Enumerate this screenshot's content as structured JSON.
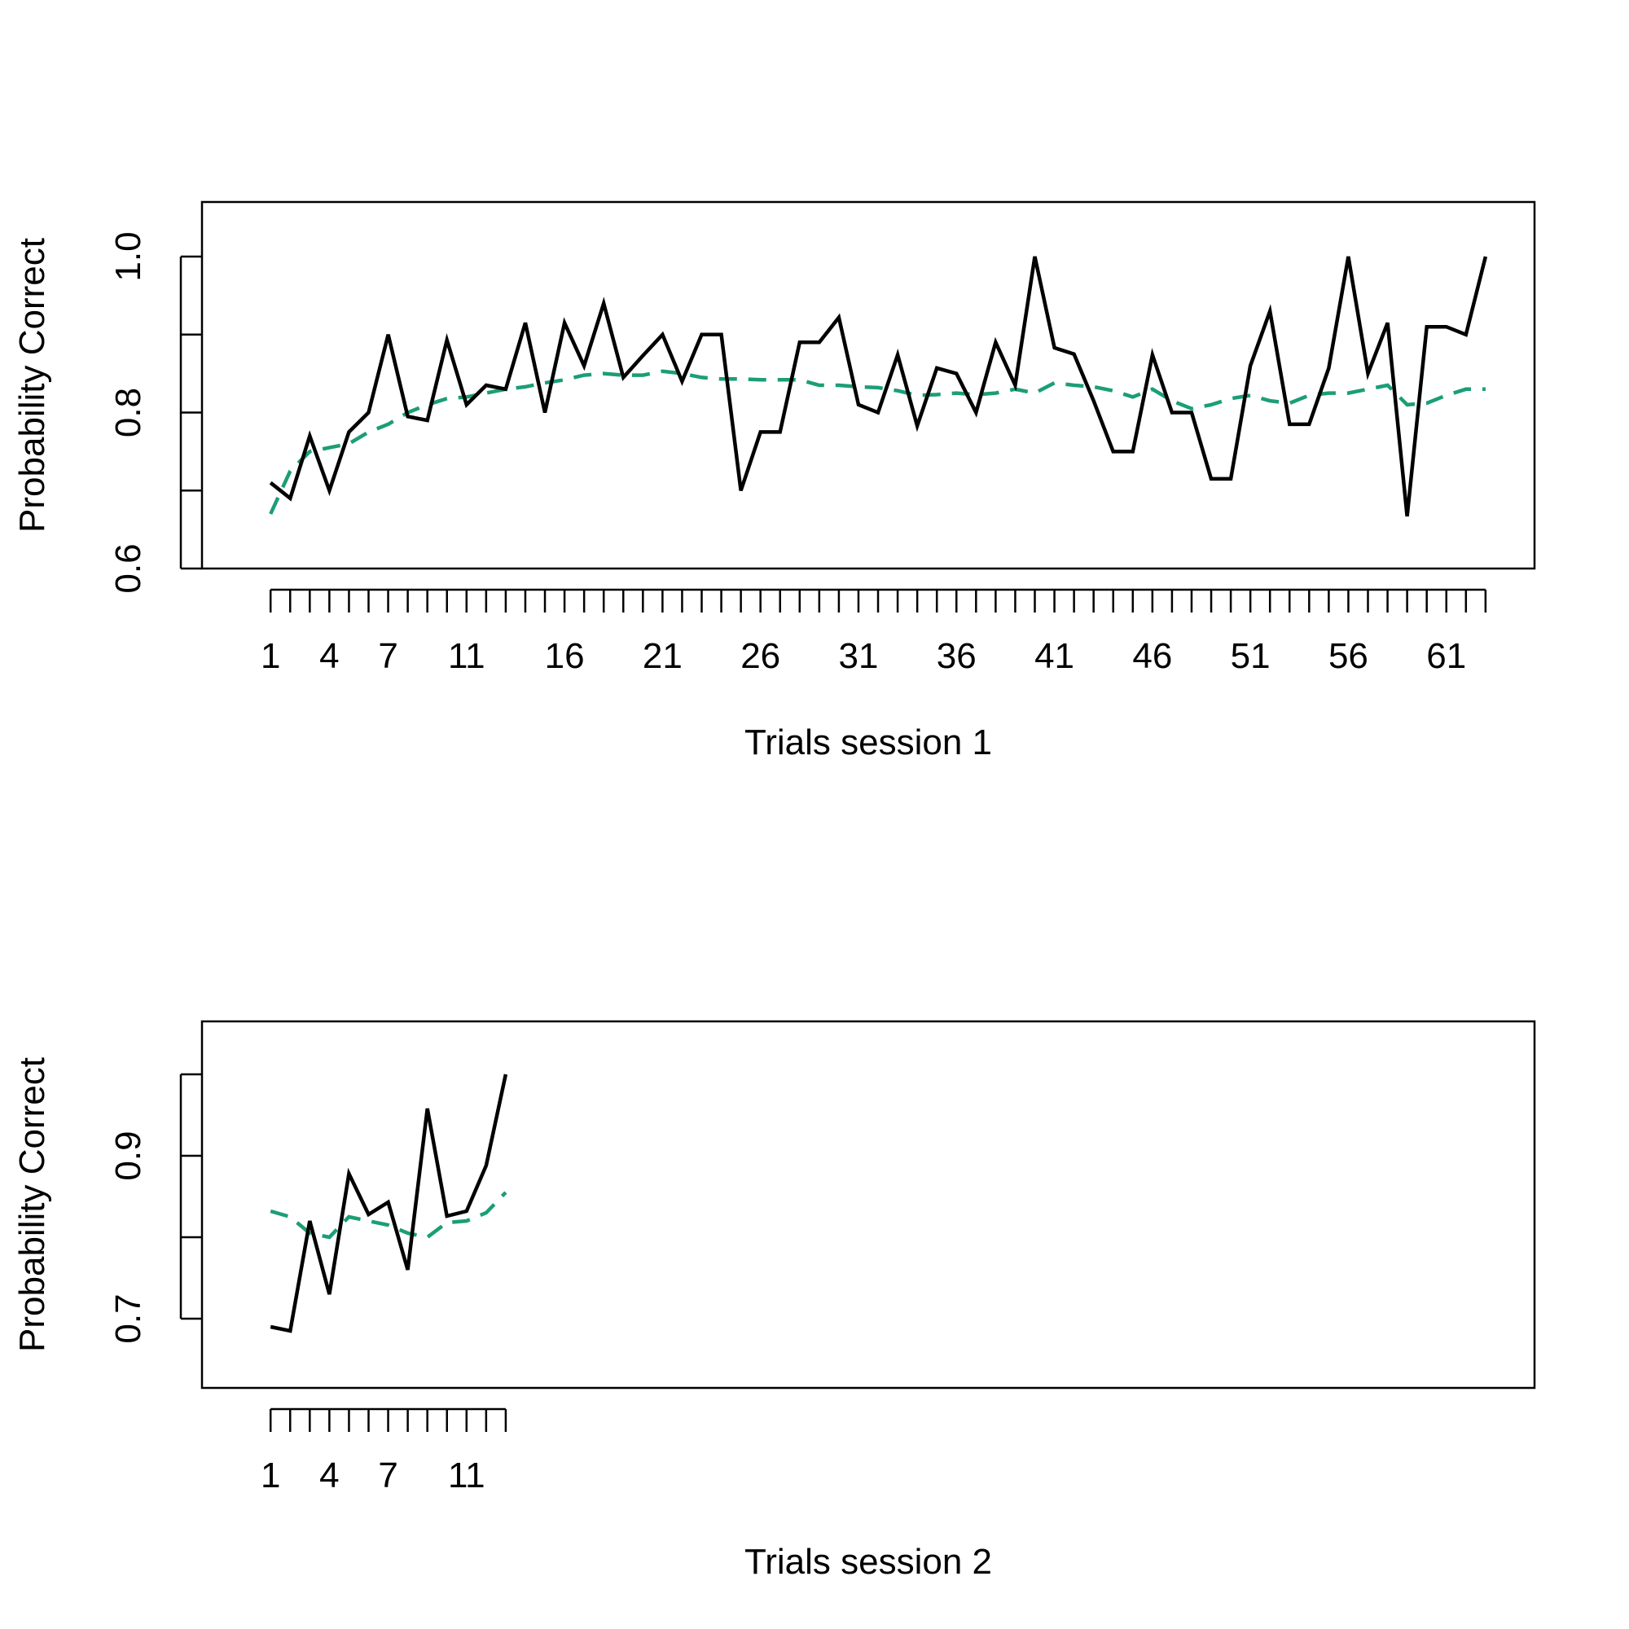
{
  "colors": {
    "observed": "#000000",
    "model": "#1b9e77",
    "axis": "#000000"
  },
  "chart_data": [
    {
      "type": "line",
      "title": "",
      "xlabel": "Trials session 1",
      "ylabel": "Probability Correct",
      "xlim": [
        -2.5,
        65.5
      ],
      "ylim": [
        0.6,
        1.07
      ],
      "x_ticks": [
        1,
        2,
        3,
        4,
        5,
        6,
        7,
        8,
        9,
        10,
        11,
        12,
        13,
        14,
        15,
        16,
        17,
        18,
        19,
        20,
        21,
        22,
        23,
        24,
        25,
        26,
        27,
        28,
        29,
        30,
        31,
        32,
        33,
        34,
        35,
        36,
        37,
        38,
        39,
        40,
        41,
        42,
        43,
        44,
        45,
        46,
        47,
        48,
        49,
        50,
        51,
        52,
        53,
        54,
        55,
        56,
        57,
        58,
        59,
        60,
        61,
        62,
        63
      ],
      "x_tick_labels": [
        "1",
        "4",
        "7",
        "11",
        "16",
        "21",
        "26",
        "31",
        "36",
        "41",
        "46",
        "51",
        "56",
        "61"
      ],
      "x_tick_label_positions": [
        1,
        4,
        7,
        11,
        16,
        21,
        26,
        31,
        36,
        41,
        46,
        51,
        56,
        61
      ],
      "y_ticks": [
        0.6,
        0.7,
        0.8,
        0.9,
        1.0
      ],
      "y_tick_labels": [
        "0.6",
        "",
        "0.8",
        "",
        "1.0"
      ],
      "grid": false,
      "x": [
        1,
        2,
        3,
        4,
        5,
        6,
        7,
        8,
        9,
        10,
        11,
        12,
        13,
        14,
        15,
        16,
        17,
        18,
        19,
        20,
        21,
        22,
        23,
        24,
        25,
        26,
        27,
        28,
        29,
        30,
        31,
        32,
        33,
        34,
        35,
        36,
        37,
        38,
        39,
        40,
        41,
        42,
        43,
        44,
        45,
        46,
        47,
        48,
        49,
        50,
        51,
        52,
        53,
        54,
        55,
        56,
        57,
        58,
        59,
        60,
        61,
        62,
        63
      ],
      "series": [
        {
          "style": "solid",
          "values": [
            0.71,
            0.69,
            0.77,
            0.7,
            0.775,
            0.8,
            0.9,
            0.795,
            0.79,
            0.893,
            0.81,
            0.835,
            0.83,
            0.915,
            0.8,
            0.915,
            0.86,
            0.94,
            0.845,
            0.873,
            0.9,
            0.84,
            0.9,
            0.9,
            0.7,
            0.775,
            0.775,
            0.89,
            0.89,
            0.922,
            0.81,
            0.8,
            0.874,
            0.783,
            0.857,
            0.85,
            0.8,
            0.89,
            0.835,
            1.0,
            0.883,
            0.875,
            0.815,
            0.75,
            0.75,
            0.874,
            0.8,
            0.8,
            0.715,
            0.715,
            0.86,
            0.93,
            0.785,
            0.785,
            0.857,
            1.0,
            0.85,
            0.915,
            0.667,
            0.91,
            0.91,
            0.9,
            1.0
          ]
        },
        {
          "style": "dashed",
          "values": [
            0.67,
            0.725,
            0.75,
            0.755,
            0.76,
            0.775,
            0.785,
            0.8,
            0.81,
            0.818,
            0.82,
            0.825,
            0.83,
            0.833,
            0.838,
            0.842,
            0.848,
            0.85,
            0.848,
            0.848,
            0.853,
            0.85,
            0.845,
            0.843,
            0.843,
            0.842,
            0.842,
            0.842,
            0.835,
            0.835,
            0.833,
            0.832,
            0.828,
            0.822,
            0.823,
            0.825,
            0.823,
            0.825,
            0.83,
            0.825,
            0.838,
            0.835,
            0.833,
            0.828,
            0.82,
            0.83,
            0.815,
            0.805,
            0.81,
            0.818,
            0.822,
            0.815,
            0.812,
            0.822,
            0.825,
            0.825,
            0.83,
            0.835,
            0.81,
            0.812,
            0.822,
            0.83,
            0.83
          ]
        }
      ]
    },
    {
      "type": "line",
      "title": "",
      "xlabel": "Trials session 2",
      "ylabel": "Probability Correct",
      "xlim": [
        -2.5,
        65.5
      ],
      "ylim": [
        0.615,
        1.065
      ],
      "x_ticks": [
        1,
        2,
        3,
        4,
        5,
        6,
        7,
        8,
        9,
        10,
        11,
        12,
        13
      ],
      "x_tick_labels": [
        "1",
        "4",
        "7",
        "11"
      ],
      "x_tick_label_positions": [
        1,
        4,
        7,
        11
      ],
      "y_ticks": [
        0.7,
        0.8,
        0.9,
        1.0
      ],
      "y_tick_labels": [
        "0.7",
        "",
        "0.9",
        ""
      ],
      "grid": false,
      "x": [
        1,
        2,
        3,
        4,
        5,
        6,
        7,
        8,
        9,
        10,
        11,
        12,
        13
      ],
      "series": [
        {
          "style": "solid",
          "values": [
            0.69,
            0.685,
            0.82,
            0.73,
            0.878,
            0.828,
            0.843,
            0.76,
            0.958,
            0.826,
            0.832,
            0.888,
            1.0
          ]
        },
        {
          "style": "dashed",
          "values": [
            0.832,
            0.825,
            0.805,
            0.8,
            0.825,
            0.82,
            0.815,
            0.805,
            0.8,
            0.818,
            0.82,
            0.83,
            0.855
          ]
        }
      ]
    }
  ]
}
